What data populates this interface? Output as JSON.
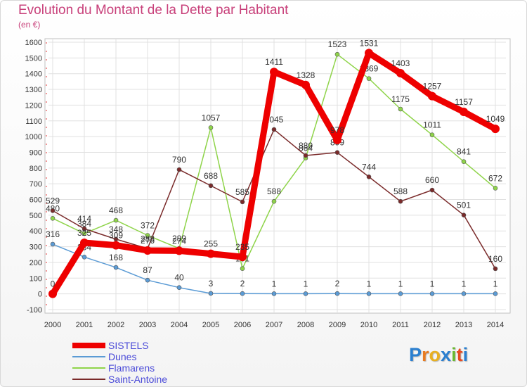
{
  "chart_data": {
    "type": "line",
    "title": "Evolution du Montant de la Dette par Habitant",
    "subtitle": "(en €)",
    "xlabel": "",
    "ylabel": "(en €)",
    "ylim": [
      -100,
      1600
    ],
    "yticks": [
      -100,
      0,
      100,
      200,
      300,
      400,
      500,
      600,
      700,
      800,
      900,
      1000,
      1100,
      1200,
      1300,
      1400,
      1500,
      1600
    ],
    "x": [
      "2000",
      "2001",
      "2002",
      "2003",
      "2004",
      "2005",
      "2006",
      "2007",
      "2008",
      "2009",
      "2010",
      "2011",
      "2012",
      "2013",
      "2014"
    ],
    "legend_position": "bottom-left",
    "series": [
      {
        "name": "SISTELS",
        "color": "#ee0000",
        "width": 9,
        "values": [
          0,
          325,
          309,
          276,
          274,
          255,
          235,
          1411,
          1328,
          978,
          1531,
          1403,
          1257,
          1157,
          1049
        ]
      },
      {
        "name": "Dunes",
        "color": "#5b9bd5",
        "width": 1.5,
        "values": [
          316,
          234,
          168,
          87,
          40,
          3,
          2,
          1,
          1,
          2,
          1,
          1,
          1,
          1,
          1
        ]
      },
      {
        "name": "Flamarens",
        "color": "#8fd44a",
        "width": 1.5,
        "values": [
          480,
          384,
          468,
          372,
          289,
          1057,
          161,
          588,
          864,
          1523,
          1369,
          1175,
          1011,
          841,
          672
        ]
      },
      {
        "name": "Saint-Antoine",
        "color": "#7a2a2a",
        "width": 1.5,
        "values": [
          529,
          414,
          348,
          288,
          790,
          688,
          585,
          1045,
          880,
          899,
          744,
          588,
          660,
          501,
          160
        ]
      }
    ]
  },
  "branding": {
    "logo_letters": [
      "P",
      "r",
      "o",
      "x",
      "i",
      "t",
      "i"
    ],
    "logo_colors": [
      "#2a7fd0",
      "#e87a20",
      "#e8b020",
      "#2a7fd0",
      "#6ab830",
      "#e84a20",
      "#2a7fd0"
    ]
  }
}
